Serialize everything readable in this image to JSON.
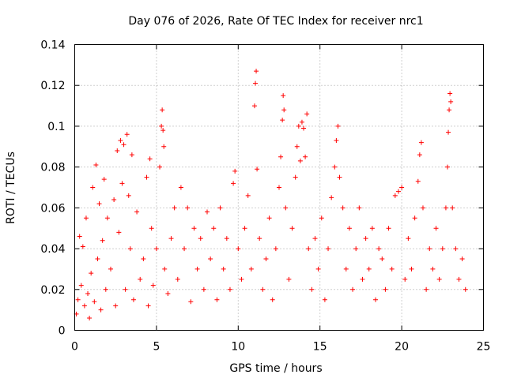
{
  "chart_data": {
    "type": "scatter",
    "title": "Day 076 of 2026, Rate Of TEC Index for receiver nrc1",
    "xlabel": "GPS time / hours",
    "ylabel": "ROTI / TECUs",
    "xlim": [
      0,
      25
    ],
    "ylim": [
      0,
      0.14
    ],
    "xticks": [
      0,
      5,
      10,
      15,
      20,
      25
    ],
    "yticks": [
      0,
      0.02,
      0.04,
      0.06,
      0.08,
      0.1,
      0.12,
      0.14
    ],
    "xtick_labels": [
      "0",
      "5",
      "10",
      "15",
      "20",
      "25"
    ],
    "ytick_labels": [
      "0",
      "0.02",
      "0.04",
      "0.06",
      "0.08",
      "0.1",
      "0.12",
      "0.14"
    ],
    "grid": true,
    "marker": "plus",
    "color": "#ff0000",
    "series": [
      {
        "points": [
          [
            0.1,
            0.008
          ],
          [
            0.2,
            0.015
          ],
          [
            0.3,
            0.046
          ],
          [
            0.4,
            0.022
          ],
          [
            0.5,
            0.041
          ],
          [
            0.6,
            0.012
          ],
          [
            0.7,
            0.055
          ],
          [
            0.8,
            0.018
          ],
          [
            0.9,
            0.006
          ],
          [
            1.0,
            0.028
          ],
          [
            1.1,
            0.07
          ],
          [
            1.2,
            0.014
          ],
          [
            1.3,
            0.081
          ],
          [
            1.4,
            0.035
          ],
          [
            1.5,
            0.062
          ],
          [
            1.6,
            0.01
          ],
          [
            1.7,
            0.044
          ],
          [
            1.8,
            0.074
          ],
          [
            1.9,
            0.02
          ],
          [
            2.0,
            0.055
          ],
          [
            2.2,
            0.03
          ],
          [
            2.4,
            0.064
          ],
          [
            2.5,
            0.012
          ],
          [
            2.6,
            0.088
          ],
          [
            2.7,
            0.048
          ],
          [
            2.8,
            0.093
          ],
          [
            2.9,
            0.072
          ],
          [
            3.0,
            0.091
          ],
          [
            3.1,
            0.02
          ],
          [
            3.2,
            0.096
          ],
          [
            3.3,
            0.066
          ],
          [
            3.4,
            0.04
          ],
          [
            3.5,
            0.086
          ],
          [
            3.6,
            0.015
          ],
          [
            3.8,
            0.058
          ],
          [
            4.0,
            0.025
          ],
          [
            4.2,
            0.035
          ],
          [
            4.4,
            0.075
          ],
          [
            4.5,
            0.012
          ],
          [
            4.6,
            0.084
          ],
          [
            4.7,
            0.05
          ],
          [
            4.8,
            0.022
          ],
          [
            5.0,
            0.04
          ],
          [
            5.2,
            0.08
          ],
          [
            5.3,
            0.1
          ],
          [
            5.35,
            0.108
          ],
          [
            5.4,
            0.098
          ],
          [
            5.45,
            0.09
          ],
          [
            5.5,
            0.03
          ],
          [
            5.7,
            0.018
          ],
          [
            5.9,
            0.045
          ],
          [
            6.1,
            0.06
          ],
          [
            6.3,
            0.025
          ],
          [
            6.5,
            0.07
          ],
          [
            6.7,
            0.04
          ],
          [
            6.9,
            0.06
          ],
          [
            7.1,
            0.014
          ],
          [
            7.3,
            0.05
          ],
          [
            7.5,
            0.03
          ],
          [
            7.7,
            0.045
          ],
          [
            7.9,
            0.02
          ],
          [
            8.1,
            0.058
          ],
          [
            8.3,
            0.035
          ],
          [
            8.5,
            0.05
          ],
          [
            8.7,
            0.015
          ],
          [
            8.9,
            0.06
          ],
          [
            9.1,
            0.03
          ],
          [
            9.3,
            0.045
          ],
          [
            9.5,
            0.02
          ],
          [
            9.7,
            0.072
          ],
          [
            9.8,
            0.078
          ],
          [
            10.0,
            0.04
          ],
          [
            10.2,
            0.025
          ],
          [
            10.4,
            0.05
          ],
          [
            10.6,
            0.066
          ],
          [
            10.8,
            0.03
          ],
          [
            11.0,
            0.11
          ],
          [
            11.05,
            0.121
          ],
          [
            11.1,
            0.127
          ],
          [
            11.15,
            0.079
          ],
          [
            11.3,
            0.045
          ],
          [
            11.5,
            0.02
          ],
          [
            11.7,
            0.035
          ],
          [
            11.9,
            0.055
          ],
          [
            12.1,
            0.015
          ],
          [
            12.3,
            0.04
          ],
          [
            12.5,
            0.07
          ],
          [
            12.6,
            0.085
          ],
          [
            12.7,
            0.103
          ],
          [
            12.75,
            0.115
          ],
          [
            12.8,
            0.108
          ],
          [
            12.9,
            0.06
          ],
          [
            13.1,
            0.025
          ],
          [
            13.3,
            0.05
          ],
          [
            13.5,
            0.075
          ],
          [
            13.6,
            0.09
          ],
          [
            13.7,
            0.1
          ],
          [
            13.8,
            0.083
          ],
          [
            13.9,
            0.102
          ],
          [
            14.0,
            0.099
          ],
          [
            14.1,
            0.085
          ],
          [
            14.2,
            0.106
          ],
          [
            14.3,
            0.04
          ],
          [
            14.5,
            0.02
          ],
          [
            14.7,
            0.045
          ],
          [
            14.9,
            0.03
          ],
          [
            15.1,
            0.055
          ],
          [
            15.3,
            0.015
          ],
          [
            15.5,
            0.04
          ],
          [
            15.7,
            0.065
          ],
          [
            15.9,
            0.08
          ],
          [
            16.0,
            0.093
          ],
          [
            16.1,
            0.1
          ],
          [
            16.2,
            0.075
          ],
          [
            16.4,
            0.06
          ],
          [
            16.6,
            0.03
          ],
          [
            16.8,
            0.05
          ],
          [
            17.0,
            0.02
          ],
          [
            17.2,
            0.04
          ],
          [
            17.4,
            0.06
          ],
          [
            17.6,
            0.025
          ],
          [
            17.8,
            0.045
          ],
          [
            18.0,
            0.03
          ],
          [
            18.2,
            0.05
          ],
          [
            18.4,
            0.015
          ],
          [
            18.6,
            0.04
          ],
          [
            18.8,
            0.035
          ],
          [
            19.0,
            0.02
          ],
          [
            19.2,
            0.05
          ],
          [
            19.4,
            0.03
          ],
          [
            19.6,
            0.066
          ],
          [
            19.8,
            0.068
          ],
          [
            20.0,
            0.07
          ],
          [
            20.2,
            0.025
          ],
          [
            20.4,
            0.045
          ],
          [
            20.6,
            0.03
          ],
          [
            20.8,
            0.055
          ],
          [
            21.0,
            0.073
          ],
          [
            21.1,
            0.086
          ],
          [
            21.2,
            0.092
          ],
          [
            21.3,
            0.06
          ],
          [
            21.5,
            0.02
          ],
          [
            21.7,
            0.04
          ],
          [
            21.9,
            0.03
          ],
          [
            22.1,
            0.05
          ],
          [
            22.3,
            0.025
          ],
          [
            22.5,
            0.04
          ],
          [
            22.7,
            0.06
          ],
          [
            22.8,
            0.08
          ],
          [
            22.85,
            0.097
          ],
          [
            22.9,
            0.108
          ],
          [
            22.95,
            0.116
          ],
          [
            23.0,
            0.112
          ],
          [
            23.1,
            0.06
          ],
          [
            23.3,
            0.04
          ],
          [
            23.5,
            0.025
          ],
          [
            23.7,
            0.035
          ],
          [
            23.9,
            0.02
          ]
        ]
      }
    ]
  }
}
